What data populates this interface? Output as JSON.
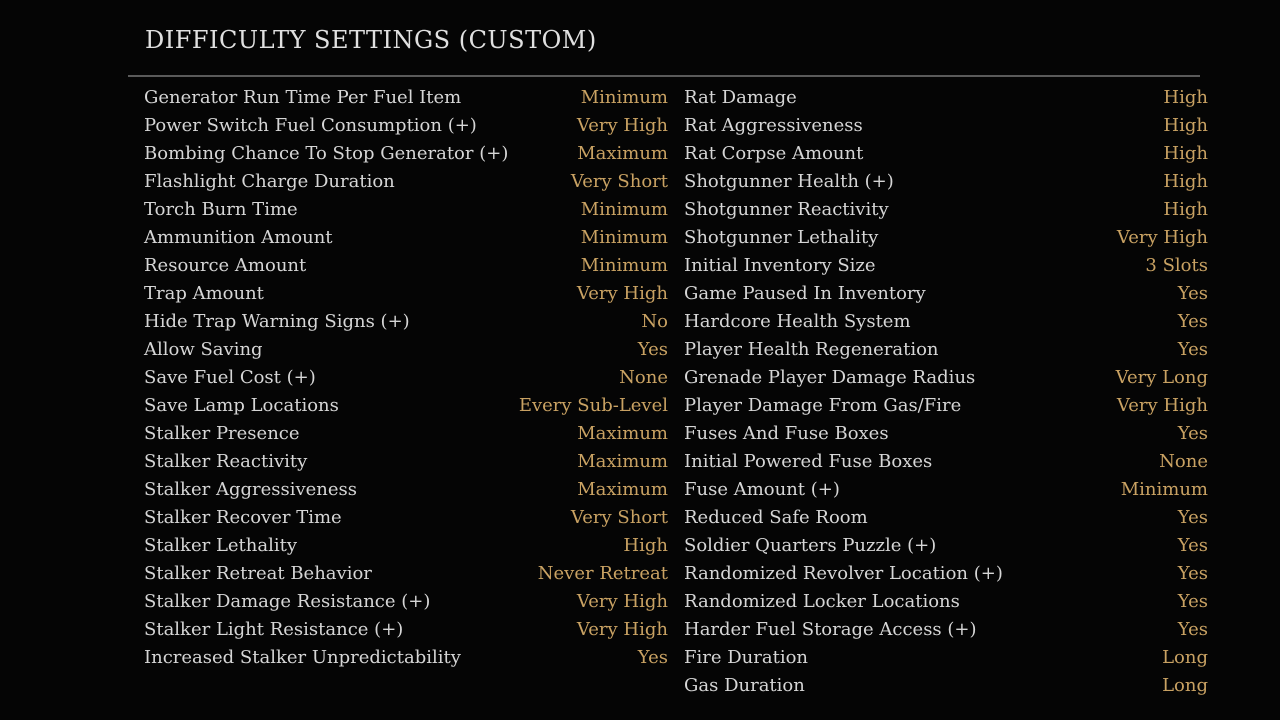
{
  "header": {
    "title": "DIFFICULTY SETTINGS (CUSTOM)"
  },
  "columns": [
    {
      "rows": [
        {
          "label": "Generator Run Time Per Fuel Item",
          "value": "Minimum"
        },
        {
          "label": "Power Switch Fuel Consumption (+)",
          "value": "Very High"
        },
        {
          "label": "Bombing Chance To Stop Generator (+)",
          "value": "Maximum"
        },
        {
          "label": "Flashlight Charge Duration",
          "value": "Very Short"
        },
        {
          "label": "Torch Burn Time",
          "value": "Minimum"
        },
        {
          "label": "Ammunition Amount",
          "value": "Minimum"
        },
        {
          "label": "Resource Amount",
          "value": "Minimum"
        },
        {
          "label": "Trap Amount",
          "value": "Very High"
        },
        {
          "label": "Hide Trap Warning Signs (+)",
          "value": "No"
        },
        {
          "label": "Allow Saving",
          "value": "Yes"
        },
        {
          "label": "Save Fuel Cost (+)",
          "value": "None"
        },
        {
          "label": "Save Lamp Locations",
          "value": "Every Sub-Level"
        },
        {
          "label": "Stalker Presence",
          "value": "Maximum"
        },
        {
          "label": "Stalker Reactivity",
          "value": "Maximum"
        },
        {
          "label": "Stalker Aggressiveness",
          "value": "Maximum"
        },
        {
          "label": "Stalker Recover Time",
          "value": "Very Short"
        },
        {
          "label": "Stalker Lethality",
          "value": "High"
        },
        {
          "label": "Stalker Retreat Behavior",
          "value": "Never Retreat"
        },
        {
          "label": "Stalker Damage Resistance (+)",
          "value": "Very High"
        },
        {
          "label": "Stalker Light Resistance (+)",
          "value": "Very High"
        },
        {
          "label": "Increased Stalker Unpredictability",
          "value": "Yes"
        }
      ]
    },
    {
      "rows": [
        {
          "label": "Rat Damage",
          "value": "High"
        },
        {
          "label": "Rat Aggressiveness",
          "value": "High"
        },
        {
          "label": "Rat Corpse Amount",
          "value": "High"
        },
        {
          "label": "Shotgunner Health (+)",
          "value": "High"
        },
        {
          "label": "Shotgunner Reactivity",
          "value": "High"
        },
        {
          "label": "Shotgunner Lethality",
          "value": "Very High"
        },
        {
          "label": "Initial Inventory Size",
          "value": "3 Slots"
        },
        {
          "label": "Game Paused In Inventory",
          "value": "Yes"
        },
        {
          "label": "Hardcore Health System",
          "value": "Yes"
        },
        {
          "label": "Player Health Regeneration",
          "value": "Yes"
        },
        {
          "label": "Grenade Player Damage Radius",
          "value": "Very Long"
        },
        {
          "label": "Player Damage From Gas/Fire",
          "value": "Very High"
        },
        {
          "label": "Fuses And Fuse Boxes",
          "value": "Yes"
        },
        {
          "label": "Initial Powered Fuse Boxes",
          "value": "None"
        },
        {
          "label": "Fuse Amount (+)",
          "value": "Minimum"
        },
        {
          "label": "Reduced Safe Room",
          "value": "Yes"
        },
        {
          "label": "Soldier Quarters Puzzle (+)",
          "value": "Yes"
        },
        {
          "label": "Randomized Revolver Location (+)",
          "value": "Yes"
        },
        {
          "label": "Randomized Locker Locations",
          "value": "Yes"
        },
        {
          "label": "Harder Fuel Storage Access (+)",
          "value": "Yes"
        },
        {
          "label": "Fire Duration",
          "value": "Long"
        },
        {
          "label": "Gas Duration",
          "value": "Long"
        }
      ]
    }
  ]
}
